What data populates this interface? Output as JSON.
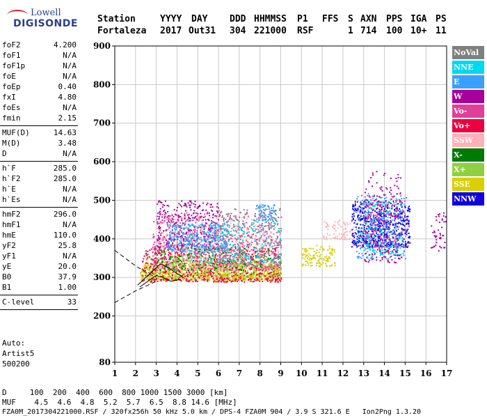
{
  "logo": {
    "line1": "Lowell",
    "line2": "DIGISONDE"
  },
  "header": {
    "row1": [
      "Station",
      "YYYY",
      "DAY",
      "DDD",
      "HHMMSS",
      "P1",
      "FFS",
      "S",
      "AXN",
      "PPS",
      "IGA",
      "PS"
    ],
    "row2": [
      "Fortaleza",
      "2017",
      "Out31",
      "304",
      "221000",
      "RSF",
      "1",
      "714",
      "100",
      "10+",
      "11"
    ]
  },
  "params": [
    [
      {
        "n": "foF2",
        "v": "4.200"
      },
      {
        "n": "foF1",
        "v": "N/A"
      },
      {
        "n": "foF1p",
        "v": "N/A"
      },
      {
        "n": "foE",
        "v": "N/A"
      },
      {
        "n": "foEp",
        "v": "0.40"
      },
      {
        "n": "fxI",
        "v": "4.80"
      },
      {
        "n": "foEs",
        "v": "N/A"
      },
      {
        "n": "fmin",
        "v": "2.15"
      }
    ],
    [
      {
        "n": "MUF(D)",
        "v": "14.63"
      },
      {
        "n": "M(D)",
        "v": "3.48"
      },
      {
        "n": "D",
        "v": "N/A"
      }
    ],
    [
      {
        "n": "h`F",
        "v": "285.0"
      },
      {
        "n": "h`F2",
        "v": "285.0"
      },
      {
        "n": "h`E",
        "v": "N/A"
      },
      {
        "n": "h`Es",
        "v": "N/A"
      }
    ],
    [
      {
        "n": "hmF2",
        "v": "296.0"
      },
      {
        "n": "hmF1",
        "v": "N/A"
      },
      {
        "n": "hmE",
        "v": "110.0"
      },
      {
        "n": "yF2",
        "v": "25.8"
      },
      {
        "n": "yF1",
        "v": "N/A"
      },
      {
        "n": "yE",
        "v": "20.0"
      },
      {
        "n": "B0",
        "v": "37.9"
      },
      {
        "n": "B1",
        "v": "1.00"
      }
    ],
    [
      {
        "n": "C-level",
        "v": "33"
      }
    ]
  ],
  "auto": {
    "line1": "Auto:",
    "line2": "Artist5",
    "line3": "500200"
  },
  "legend": [
    {
      "label": "NoVal",
      "color": "#808080"
    },
    {
      "label": "NNE",
      "color": "#00d8f0"
    },
    {
      "label": "E",
      "color": "#3aa0ff"
    },
    {
      "label": "W",
      "color": "#a8009c"
    },
    {
      "label": "Vo-",
      "color": "#e0409a"
    },
    {
      "label": "Vo+",
      "color": "#ee0040"
    },
    {
      "label": "SSW",
      "color": "#ffb0b8"
    },
    {
      "label": "X-",
      "color": "#007a00"
    },
    {
      "label": "X+",
      "color": "#90d040"
    },
    {
      "label": "SSE",
      "color": "#d8d000"
    },
    {
      "label": "NNW",
      "color": "#1000e0"
    }
  ],
  "footer": {
    "line1": "D     100  200  400  600  800 1000 1500 3000 [km]",
    "line2": "MUF    4.5  4.6  4.8  5.2  5.7  6.5  8.8 14.6 [MHz]",
    "line3": "FZA0M_2017304221000.RSF / 320fx256h 50 kHz 5.0 km / DPS-4 FZA0M 904 / 3.9 S 321.6 E   Ion2Png 1.3.20"
  },
  "chart_data": {
    "type": "scatter",
    "xlim": [
      1,
      17
    ],
    "ylim": [
      80,
      900
    ],
    "x_ticks": [
      1,
      2,
      3,
      4,
      5,
      6,
      7,
      8,
      9,
      10,
      11,
      12,
      13,
      14,
      15,
      16,
      17
    ],
    "y_ticks": [
      80,
      200,
      300,
      400,
      500,
      600,
      700,
      800,
      900
    ],
    "grid": true,
    "legend_position": "right",
    "clusters": [
      {
        "color": "#d8d000",
        "fmin": 2.2,
        "fmax": 9.0,
        "hmin": 295,
        "hmax": 340,
        "n": 900
      },
      {
        "color": "#d8d000",
        "fmin": 10.0,
        "fmax": 11.6,
        "hmin": 330,
        "hmax": 385,
        "n": 120
      },
      {
        "color": "#ee0040",
        "fmin": 2.3,
        "fmax": 9.0,
        "hmin": 290,
        "hmax": 380,
        "n": 700
      },
      {
        "color": "#e0409a",
        "fmin": 2.8,
        "fmax": 9.0,
        "hmin": 320,
        "hmax": 470,
        "n": 600
      },
      {
        "color": "#a8009c",
        "fmin": 3.0,
        "fmax": 6.0,
        "hmin": 380,
        "hmax": 500,
        "n": 350
      },
      {
        "color": "#3aa0ff",
        "fmin": 3.5,
        "fmax": 6.5,
        "hmin": 370,
        "hmax": 440,
        "n": 350
      },
      {
        "color": "#3aa0ff",
        "fmin": 7.8,
        "fmax": 8.8,
        "hmin": 450,
        "hmax": 490,
        "n": 80
      },
      {
        "color": "#ffb0b8",
        "fmin": 3.0,
        "fmax": 9.0,
        "hmin": 320,
        "hmax": 460,
        "n": 500
      },
      {
        "color": "#90d040",
        "fmin": 2.5,
        "fmax": 9.0,
        "hmin": 300,
        "hmax": 360,
        "n": 300
      },
      {
        "color": "#007a00",
        "fmin": 3.0,
        "fmax": 8.5,
        "hmin": 320,
        "hmax": 380,
        "n": 150
      },
      {
        "color": "#808080",
        "fmin": 6.0,
        "fmax": 9.0,
        "hmin": 330,
        "hmax": 480,
        "n": 250
      },
      {
        "color": "#00d8f0",
        "fmin": 4.5,
        "fmax": 9.0,
        "hmin": 340,
        "hmax": 450,
        "n": 200
      },
      {
        "color": "#1000e0",
        "fmin": 12.4,
        "fmax": 15.2,
        "hmin": 380,
        "hmax": 500,
        "n": 550
      },
      {
        "color": "#3aa0ff",
        "fmin": 12.6,
        "fmax": 15.0,
        "hmin": 350,
        "hmax": 520,
        "n": 280
      },
      {
        "color": "#00d8f0",
        "fmin": 12.8,
        "fmax": 14.8,
        "hmin": 360,
        "hmax": 500,
        "n": 150
      },
      {
        "color": "#a8009c",
        "fmin": 13.0,
        "fmax": 14.8,
        "hmin": 340,
        "hmax": 580,
        "n": 180
      },
      {
        "color": "#e0409a",
        "fmin": 12.8,
        "fmax": 15.2,
        "hmin": 380,
        "hmax": 520,
        "n": 120
      },
      {
        "color": "#ffb0b8",
        "fmin": 11.0,
        "fmax": 12.5,
        "hmin": 400,
        "hmax": 450,
        "n": 80
      },
      {
        "color": "#a8009c",
        "fmin": 16.2,
        "fmax": 17.0,
        "hmin": 370,
        "hmax": 470,
        "n": 50
      }
    ],
    "traces": [
      {
        "style": "solid",
        "points": [
          [
            2.1,
            280
          ],
          [
            2.5,
            300
          ],
          [
            2.9,
            320
          ],
          [
            3.2,
            335
          ],
          [
            3.6,
            325
          ],
          [
            4.0,
            310
          ],
          [
            4.3,
            300
          ]
        ]
      },
      {
        "style": "solid",
        "points": [
          [
            2.2,
            275
          ],
          [
            2.6,
            290
          ],
          [
            3.0,
            305
          ],
          [
            3.3,
            300
          ],
          [
            3.7,
            290
          ],
          [
            4.2,
            295
          ]
        ]
      },
      {
        "style": "dashed",
        "points": [
          [
            1.0,
            370
          ],
          [
            1.5,
            350
          ],
          [
            2.0,
            330
          ],
          [
            2.6,
            310
          ],
          [
            3.0,
            300
          ]
        ]
      },
      {
        "style": "dashed",
        "points": [
          [
            1.0,
            235
          ],
          [
            1.5,
            250
          ],
          [
            2.0,
            265
          ],
          [
            2.6,
            280
          ],
          [
            3.0,
            290
          ]
        ]
      }
    ]
  }
}
